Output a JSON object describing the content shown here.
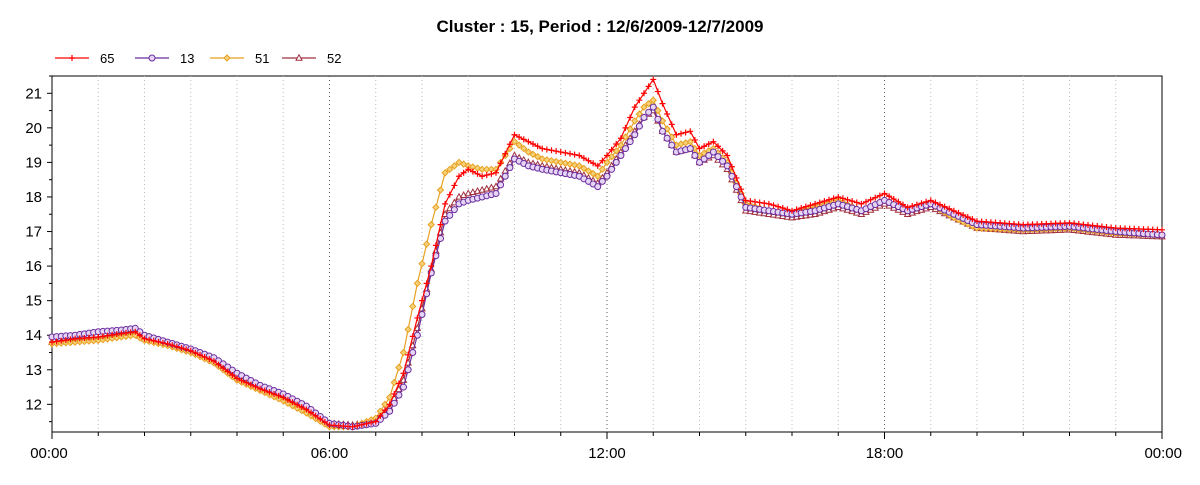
{
  "chart_data": {
    "type": "line",
    "title": "Cluster : 15, Period : 12/6/2009-12/7/2009",
    "xlabel": "",
    "ylabel": "",
    "x_unit": "hours since 00:00 (12/6/2009)",
    "xlim": [
      0,
      24
    ],
    "ylim": [
      11.2,
      21.5
    ],
    "y_ticks": [
      12,
      13,
      14,
      15,
      16,
      17,
      18,
      19,
      20,
      21
    ],
    "x_ticks": [
      {
        "value": 0,
        "label": "00:00"
      },
      {
        "value": 6,
        "label": "06:00"
      },
      {
        "value": 12,
        "label": "12:00"
      },
      {
        "value": 18,
        "label": "18:00"
      },
      {
        "value": 24,
        "label": "00:00"
      }
    ],
    "legend_position": "top-left",
    "grid": "vertical dotted",
    "x": [
      0,
      0.5,
      1,
      1.5,
      1.8,
      2,
      2.5,
      3,
      3.5,
      4,
      4.5,
      5,
      5.5,
      6,
      6.5,
      7,
      7.3,
      7.6,
      7.9,
      8.2,
      8.5,
      8.8,
      9,
      9.3,
      9.6,
      10,
      10.3,
      10.6,
      11,
      11.4,
      11.8,
      12,
      12.3,
      12.6,
      12.8,
      13,
      13.2,
      13.5,
      13.8,
      14,
      14.3,
      14.6,
      15,
      15.5,
      16,
      16.5,
      17,
      17.5,
      18,
      18.5,
      19,
      19.5,
      20,
      21,
      22,
      23,
      24
    ],
    "series": [
      {
        "name": "65",
        "color": "#ff0000",
        "marker": "plus",
        "values": [
          13.8,
          13.9,
          13.95,
          14.05,
          14.1,
          13.9,
          13.75,
          13.55,
          13.25,
          12.75,
          12.45,
          12.2,
          11.85,
          11.4,
          11.35,
          11.5,
          12.0,
          12.9,
          14.5,
          16.0,
          17.8,
          18.6,
          18.8,
          18.6,
          18.7,
          19.8,
          19.6,
          19.4,
          19.3,
          19.2,
          18.9,
          19.2,
          19.7,
          20.6,
          21.0,
          21.4,
          20.7,
          19.8,
          19.9,
          19.4,
          19.6,
          19.2,
          17.9,
          17.8,
          17.6,
          17.8,
          18.0,
          17.8,
          18.1,
          17.7,
          17.9,
          17.6,
          17.3,
          17.2,
          17.25,
          17.1,
          17.05
        ]
      },
      {
        "name": "13",
        "color": "#6a2d9e",
        "marker": "circle",
        "values": [
          13.95,
          14.0,
          14.1,
          14.15,
          14.2,
          14.0,
          13.8,
          13.6,
          13.35,
          12.9,
          12.55,
          12.3,
          11.95,
          11.45,
          11.35,
          11.45,
          11.8,
          12.5,
          14.0,
          15.8,
          17.3,
          17.8,
          17.9,
          18.0,
          18.1,
          19.1,
          18.9,
          18.8,
          18.7,
          18.6,
          18.3,
          18.6,
          19.2,
          19.8,
          20.3,
          20.6,
          19.9,
          19.3,
          19.4,
          19.0,
          19.3,
          18.9,
          17.7,
          17.6,
          17.5,
          17.6,
          17.8,
          17.6,
          17.9,
          17.6,
          17.8,
          17.5,
          17.2,
          17.1,
          17.15,
          17.0,
          16.9
        ]
      },
      {
        "name": "51",
        "color": "#e8a020",
        "marker": "diamond",
        "values": [
          13.75,
          13.8,
          13.85,
          13.95,
          14.0,
          13.85,
          13.7,
          13.5,
          13.2,
          12.7,
          12.4,
          12.1,
          11.75,
          11.35,
          11.35,
          11.6,
          12.2,
          13.5,
          15.5,
          17.2,
          18.7,
          19.0,
          18.9,
          18.8,
          18.8,
          19.6,
          19.3,
          19.1,
          19.0,
          18.9,
          18.6,
          19.0,
          19.5,
          20.2,
          20.6,
          20.8,
          20.2,
          19.5,
          19.6,
          19.2,
          19.4,
          19.0,
          17.8,
          17.6,
          17.5,
          17.7,
          17.9,
          17.6,
          17.9,
          17.6,
          17.8,
          17.4,
          17.1,
          17.05,
          17.1,
          16.95,
          16.9
        ]
      },
      {
        "name": "52",
        "color": "#a03040",
        "marker": "triangle",
        "values": [
          13.8,
          13.85,
          13.9,
          14.0,
          14.05,
          13.9,
          13.75,
          13.55,
          13.3,
          12.8,
          12.5,
          12.2,
          11.85,
          11.45,
          11.4,
          11.5,
          11.9,
          12.7,
          14.2,
          15.9,
          17.5,
          18.0,
          18.1,
          18.2,
          18.3,
          19.2,
          19.0,
          18.9,
          18.8,
          18.7,
          18.4,
          18.7,
          19.3,
          19.9,
          20.3,
          20.5,
          19.9,
          19.3,
          19.4,
          19.0,
          19.2,
          18.8,
          17.6,
          17.5,
          17.4,
          17.5,
          17.7,
          17.5,
          17.8,
          17.5,
          17.7,
          17.4,
          17.1,
          17.0,
          17.05,
          16.9,
          16.85
        ]
      }
    ]
  }
}
